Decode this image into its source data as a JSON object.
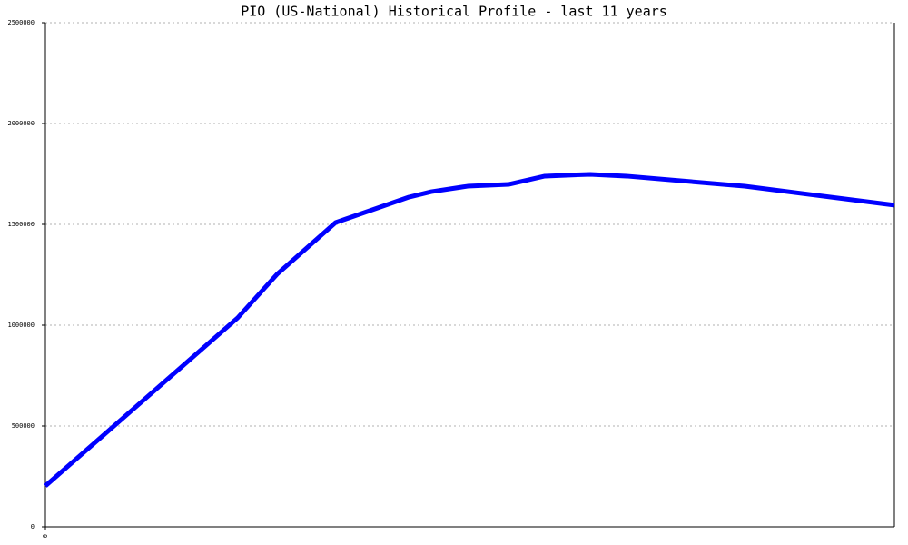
{
  "chart_data": {
    "type": "line",
    "title": "PIO (US-National) Historical Profile - last 11 years",
    "x": [
      0,
      2.49,
      3.0,
      3.76,
      4.71,
      5.0,
      5.47,
      6.0,
      6.47,
      7.06,
      7.53,
      9.06,
      11
    ],
    "series": [
      {
        "name": "PIO",
        "color": "#0000ff",
        "values": [
          203000,
          1036000,
          1252000,
          1509000,
          1635000,
          1662000,
          1689000,
          1698000,
          1739000,
          1748000,
          1739000,
          1689000,
          1595000
        ]
      }
    ],
    "xlim": [
      0,
      11
    ],
    "xticks": [
      0
    ],
    "ylim": [
      0,
      2500000
    ],
    "yticks": [
      0,
      500000,
      1000000,
      1500000,
      2000000,
      2500000
    ],
    "grid": true
  }
}
